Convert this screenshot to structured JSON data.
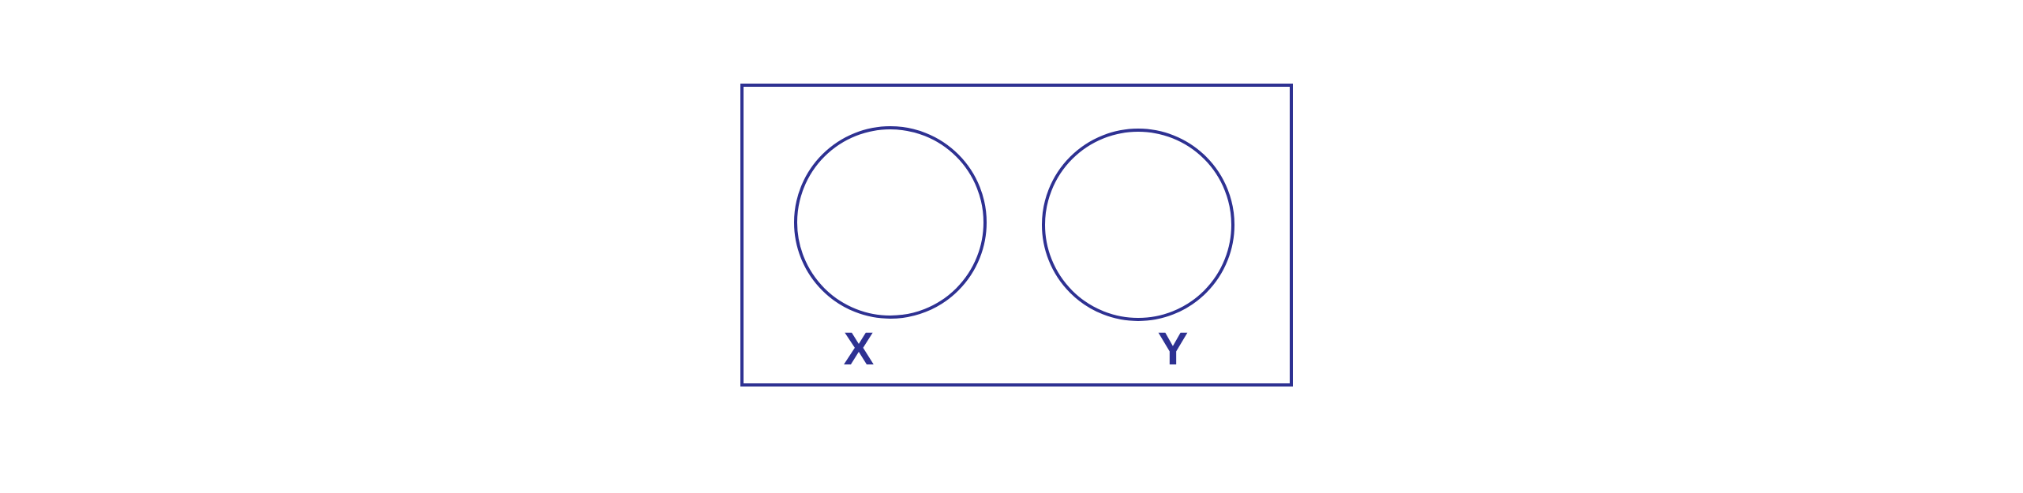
{
  "diagram": {
    "type": "venn-disjoint-sets",
    "stroke_color": "#2e3192",
    "label_color": "#2e3192",
    "sets": [
      {
        "label": "X"
      },
      {
        "label": "Y"
      }
    ]
  }
}
